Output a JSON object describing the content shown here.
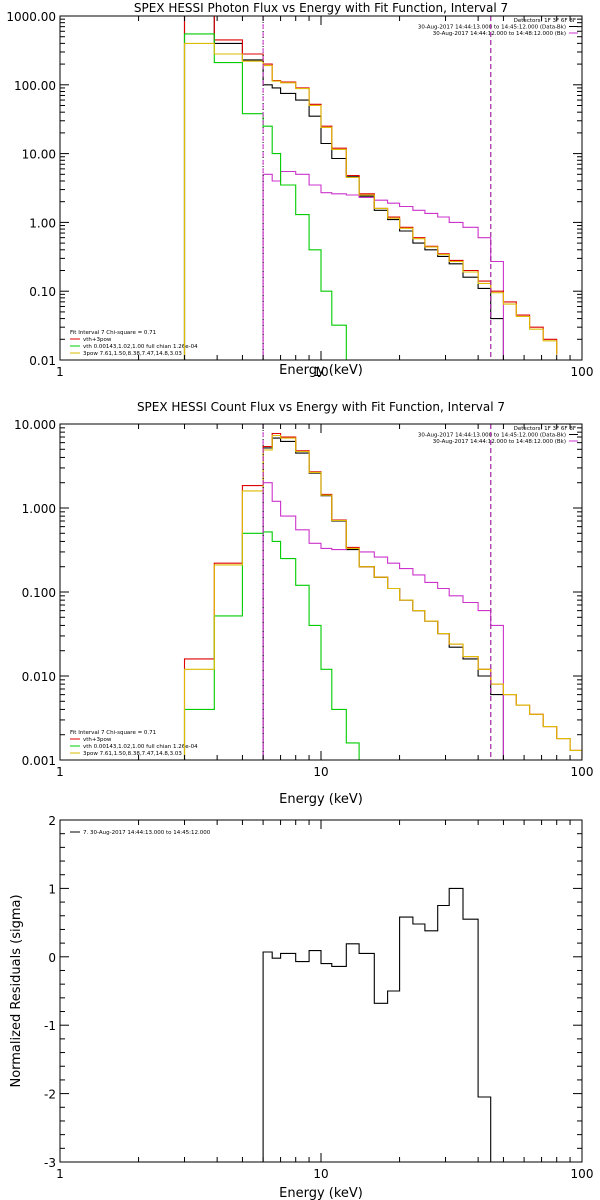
{
  "chart_data": [
    {
      "type": "line",
      "title": "SPEX HESSI Photon Flux vs Energy with Fit Function, Interval 7",
      "xlabel": "Energy (keV)",
      "ylabel": "",
      "x_scale": "log",
      "y_scale": "log",
      "xlim": [
        1,
        100
      ],
      "ylim": [
        0.01,
        1000
      ],
      "x_ticks": [
        {
          "v": 1,
          "label": "1"
        },
        {
          "v": 10,
          "label": "10"
        },
        {
          "v": 100,
          "label": "100"
        }
      ],
      "y_ticks": [
        {
          "v": 0.01,
          "label": "0.01"
        },
        {
          "v": 0.1,
          "label": "0.10"
        },
        {
          "v": 1,
          "label": "1.00"
        },
        {
          "v": 10,
          "label": "10.00"
        },
        {
          "v": 100,
          "label": "100.00"
        },
        {
          "v": 1000,
          "label": "1000.00"
        }
      ],
      "header_text": [
        "Detectors: 1F 3F 6F 8F",
        "30-Aug-2017 14:44:13.000 to 14:45:12.000 (Data-Bk)",
        "30-Aug-2017 14:44:12.000 to 14:48:12.000 (Bk)"
      ],
      "header_swatches": [
        "#000000",
        "#cc33cc"
      ],
      "legend_text": [
        "Fit Interval 7   Chi-square = 0.71",
        "vth+3pow",
        "vth 0.00143,1.02,1.00  full chian 1.26e-04",
        "3pow 7.61,1.50,8.38,7.47,14.8,3.03"
      ],
      "legend_swatches": [
        "",
        "#dd0000",
        "#00cc00",
        "#ddbb00"
      ],
      "vlines": [
        {
          "x": 6.0,
          "style": "dotted",
          "color": "#000000"
        },
        {
          "x": 6.0,
          "style": "dashed",
          "color": "#cc33cc"
        },
        {
          "x": 44.7,
          "style": "dashed",
          "color": "#000000"
        },
        {
          "x": 44.7,
          "style": "dashed",
          "color": "#cc33cc"
        }
      ],
      "edges": [
        3.0,
        3.9,
        5.0,
        6.0,
        6.5,
        7.0,
        8.0,
        9.0,
        10.0,
        11.0,
        12.5,
        14.0,
        16.0,
        18.0,
        20.0,
        22.5,
        25.0,
        28.0,
        31.0,
        35.0,
        40.0,
        44.7,
        50.0,
        56.0,
        63.0,
        71.0,
        80.0
      ],
      "series": [
        {
          "name": "data",
          "color": "#000000",
          "values": [
            1000,
            400,
            230,
            100,
            90,
            75,
            60,
            35,
            14,
            8.5,
            4.6,
            2.4,
            1.5,
            1.1,
            0.75,
            0.5,
            0.4,
            0.32,
            0.25,
            0.16,
            0.11,
            0.04
          ]
        },
        {
          "name": "background",
          "color": "#cc33cc",
          "values": [
            null,
            null,
            null,
            5.0,
            4.0,
            5.5,
            5.0,
            3.5,
            2.7,
            2.6,
            2.5,
            2.3,
            2.1,
            1.9,
            1.7,
            1.5,
            1.35,
            1.2,
            1.0,
            0.85,
            0.6,
            0.27
          ]
        },
        {
          "name": "vth+3pow",
          "color": "#dd0000",
          "values": [
            1000,
            450,
            280,
            200,
            115,
            110,
            90,
            52,
            25,
            12,
            4.8,
            2.6,
            1.6,
            1.2,
            0.85,
            0.6,
            0.45,
            0.35,
            0.28,
            0.2,
            0.14,
            0.1,
            0.07,
            0.045,
            0.03,
            0.02,
            0.012,
            0.01
          ]
        },
        {
          "name": "vth",
          "color": "#00cc00",
          "values": [
            550,
            210,
            38,
            25,
            10,
            3.5,
            1.3,
            0.4,
            0.1,
            0.032,
            0.008
          ]
        },
        {
          "name": "3pow",
          "color": "#ddbb00",
          "values": [
            400,
            280,
            220,
            190,
            113,
            107,
            88,
            50,
            24,
            11.5,
            4.5,
            2.5,
            1.6,
            1.15,
            0.82,
            0.58,
            0.44,
            0.34,
            0.27,
            0.19,
            0.13,
            0.095,
            0.065,
            0.043,
            0.028,
            0.019,
            0.012,
            0.01
          ]
        }
      ]
    },
    {
      "type": "line",
      "title": "SPEX HESSI Count Flux vs Energy with Fit Function, Interval 7",
      "xlabel": "Energy (keV)",
      "ylabel": "",
      "x_scale": "log",
      "y_scale": "log",
      "xlim": [
        1,
        100
      ],
      "ylim": [
        0.001,
        10
      ],
      "x_ticks": [
        {
          "v": 1,
          "label": "1"
        },
        {
          "v": 10,
          "label": "10"
        },
        {
          "v": 100,
          "label": "100"
        }
      ],
      "y_ticks": [
        {
          "v": 0.001,
          "label": "0.001"
        },
        {
          "v": 0.01,
          "label": "0.010"
        },
        {
          "v": 0.1,
          "label": "0.100"
        },
        {
          "v": 1,
          "label": "1.000"
        },
        {
          "v": 10,
          "label": "10.000"
        }
      ],
      "header_text": [
        "Detectors: 1F 3F 6F 8F",
        "30-Aug-2017 14:44:13.000 to 14:45:12.000 (Data-Bk)",
        "30-Aug-2017 14:44:12.000 to 14:48:12.000 (Bk)"
      ],
      "header_swatches": [
        "#000000",
        "#cc33cc"
      ],
      "legend_text": [
        "Fit Interval 7   Chi-square = 0.71",
        "vth+3pow",
        "vth 0.00143,1.02,1.00  full chian 1.26e-04",
        "3pow 7.61,1.50,8.38,7.47,14.8,3.03"
      ],
      "legend_swatches": [
        "",
        "#dd0000",
        "#00cc00",
        "#ddbb00"
      ],
      "vlines": [
        {
          "x": 6.0,
          "style": "dotted",
          "color": "#000000"
        },
        {
          "x": 6.0,
          "style": "dashed",
          "color": "#cc33cc"
        },
        {
          "x": 44.7,
          "style": "dashed",
          "color": "#000000"
        },
        {
          "x": 44.7,
          "style": "dashed",
          "color": "#cc33cc"
        }
      ],
      "edges": [
        3.0,
        3.9,
        5.0,
        6.0,
        6.5,
        7.0,
        8.0,
        9.0,
        10.0,
        11.0,
        12.5,
        14.0,
        16.0,
        18.0,
        20.0,
        22.5,
        25.0,
        28.0,
        31.0,
        35.0,
        40.0,
        44.7,
        50.0,
        56.0,
        63.0,
        71.0,
        80.0,
        90.0,
        100.0
      ],
      "series": [
        {
          "name": "data",
          "color": "#000000",
          "values": [
            null,
            null,
            null,
            5.2,
            6.8,
            6.2,
            4.5,
            2.6,
            1.4,
            0.7,
            0.32,
            0.2,
            0.15,
            0.11,
            0.08,
            0.06,
            0.045,
            0.032,
            0.022,
            0.016,
            0.01,
            0.006
          ]
        },
        {
          "name": "background",
          "color": "#cc33cc",
          "values": [
            null,
            null,
            null,
            2.0,
            1.2,
            0.8,
            0.55,
            0.38,
            0.33,
            0.32,
            0.33,
            0.3,
            0.26,
            0.22,
            0.19,
            0.16,
            0.13,
            0.11,
            0.09,
            0.075,
            0.06,
            0.04
          ]
        },
        {
          "name": "vth+3pow",
          "color": "#dd0000",
          "values": [
            0.016,
            0.22,
            1.85,
            5.4,
            7.7,
            7.0,
            4.8,
            2.7,
            1.45,
            0.72,
            0.34,
            0.2,
            0.15,
            0.11,
            0.08,
            0.06,
            0.045,
            0.032,
            0.024,
            0.017,
            0.012,
            0.008,
            0.006,
            0.0045,
            0.0035,
            0.0025,
            0.0018,
            0.0013
          ]
        },
        {
          "name": "vth",
          "color": "#00cc00",
          "values": [
            0.004,
            0.052,
            0.5,
            0.52,
            0.4,
            0.25,
            0.12,
            0.04,
            0.012,
            0.004,
            0.0016
          ]
        },
        {
          "name": "3pow",
          "color": "#ddbb00",
          "values": [
            0.012,
            0.21,
            1.6,
            4.9,
            7.3,
            6.8,
            4.7,
            2.65,
            1.42,
            0.71,
            0.33,
            0.2,
            0.15,
            0.11,
            0.08,
            0.06,
            0.045,
            0.032,
            0.024,
            0.017,
            0.012,
            0.008,
            0.006,
            0.0045,
            0.0035,
            0.0025,
            0.0018,
            0.0013
          ]
        }
      ]
    },
    {
      "type": "line",
      "title": "",
      "xlabel": "Energy (keV)",
      "ylabel": "Normalized Residuals (sigma)",
      "x_scale": "log",
      "y_scale": "linear",
      "xlim": [
        1,
        100
      ],
      "ylim": [
        -3,
        2
      ],
      "x_ticks": [
        {
          "v": 1,
          "label": "1"
        },
        {
          "v": 10,
          "label": "10"
        },
        {
          "v": 100,
          "label": "100"
        }
      ],
      "y_ticks": [
        {
          "v": -3,
          "label": "-3"
        },
        {
          "v": -2,
          "label": "-2"
        },
        {
          "v": -1,
          "label": "-1"
        },
        {
          "v": 0,
          "label": "0"
        },
        {
          "v": 1,
          "label": "1"
        },
        {
          "v": 2,
          "label": "2"
        }
      ],
      "header_text": [],
      "header_swatches": [],
      "legend_text": [
        "7. 30-Aug-2017 14:44:13.000 to 14:45:12.000"
      ],
      "legend_swatches": [
        "#000000"
      ],
      "legend_position": "top-left",
      "vlines": [],
      "edges": [
        6.0,
        6.5,
        7.0,
        8.0,
        9.0,
        10.0,
        11.0,
        12.5,
        14.0,
        16.0,
        18.0,
        20.0,
        22.5,
        25.0,
        28.0,
        31.0,
        35.0,
        40.0,
        44.7
      ],
      "series": [
        {
          "name": "7. 30-Aug-2017 14:44:13.000 to 14:45:12.000",
          "color": "#000000",
          "drop_to_bottom": true,
          "values": [
            0.07,
            -0.02,
            0.05,
            -0.07,
            0.09,
            -0.1,
            -0.14,
            0.19,
            0.05,
            -0.68,
            -0.5,
            0.58,
            0.48,
            0.38,
            0.75,
            1.0,
            0.55,
            -2.05
          ]
        }
      ]
    }
  ]
}
